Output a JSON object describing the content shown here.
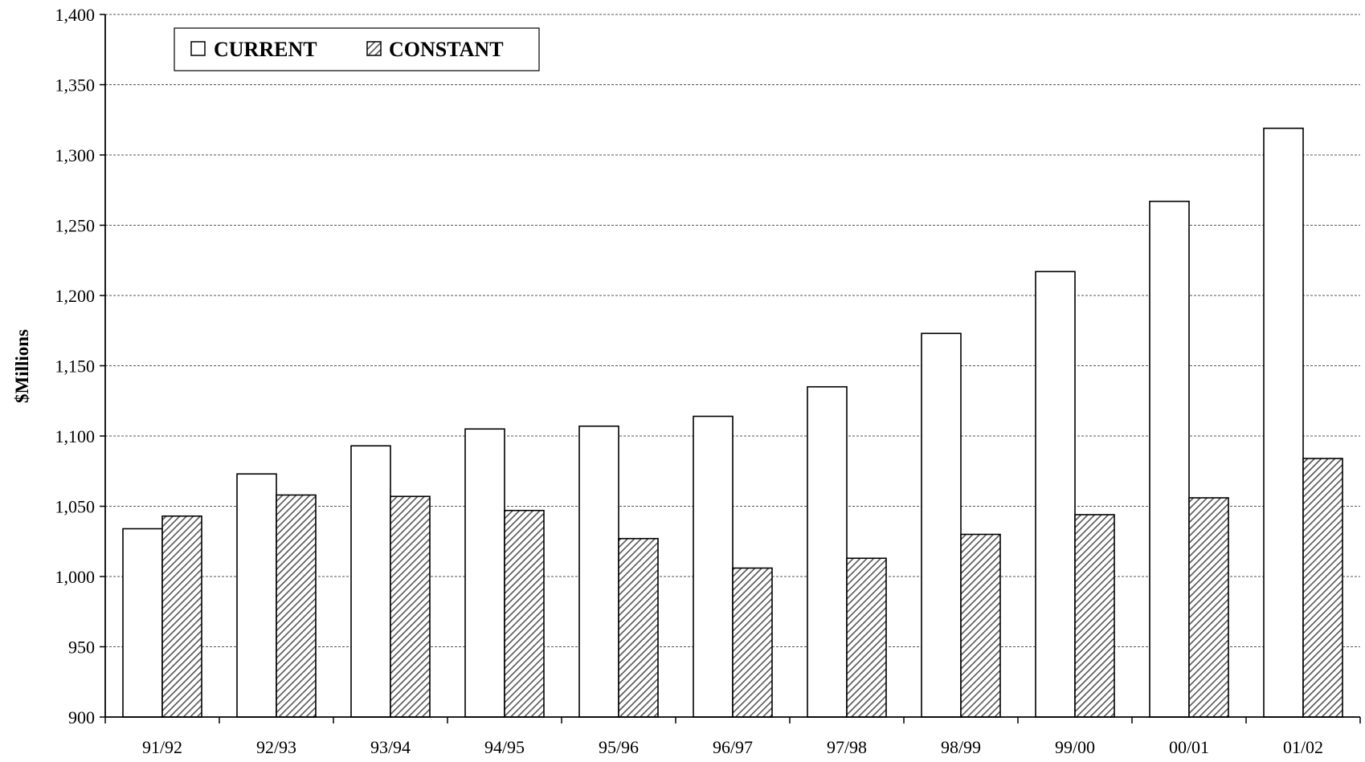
{
  "chart_data": {
    "type": "bar",
    "title": "",
    "xlabel": "",
    "ylabel": "$Millions",
    "ylim": [
      900,
      1400
    ],
    "ytick_step": 50,
    "yticks": [
      "900",
      "950",
      "1,000",
      "1,050",
      "1,100",
      "1,150",
      "1,200",
      "1,250",
      "1,300",
      "1,350",
      "1,400"
    ],
    "categories": [
      "91/92",
      "92/93",
      "93/94",
      "94/95",
      "95/96",
      "96/97",
      "97/98",
      "98/99",
      "99/00",
      "00/01",
      "01/02"
    ],
    "series": [
      {
        "name": "CURRENT",
        "fill": "white",
        "color": "#ffffff",
        "values": [
          1034,
          1073,
          1093,
          1105,
          1107,
          1114,
          1135,
          1173,
          1217,
          1267,
          1319
        ]
      },
      {
        "name": "CONSTANT",
        "fill": "diagonal-hatch",
        "color": "#777777",
        "values": [
          1043,
          1058,
          1057,
          1047,
          1027,
          1006,
          1013,
          1030,
          1044,
          1056,
          1084
        ]
      }
    ],
    "grid": "horizontal-dashed",
    "legend": "top-left"
  }
}
